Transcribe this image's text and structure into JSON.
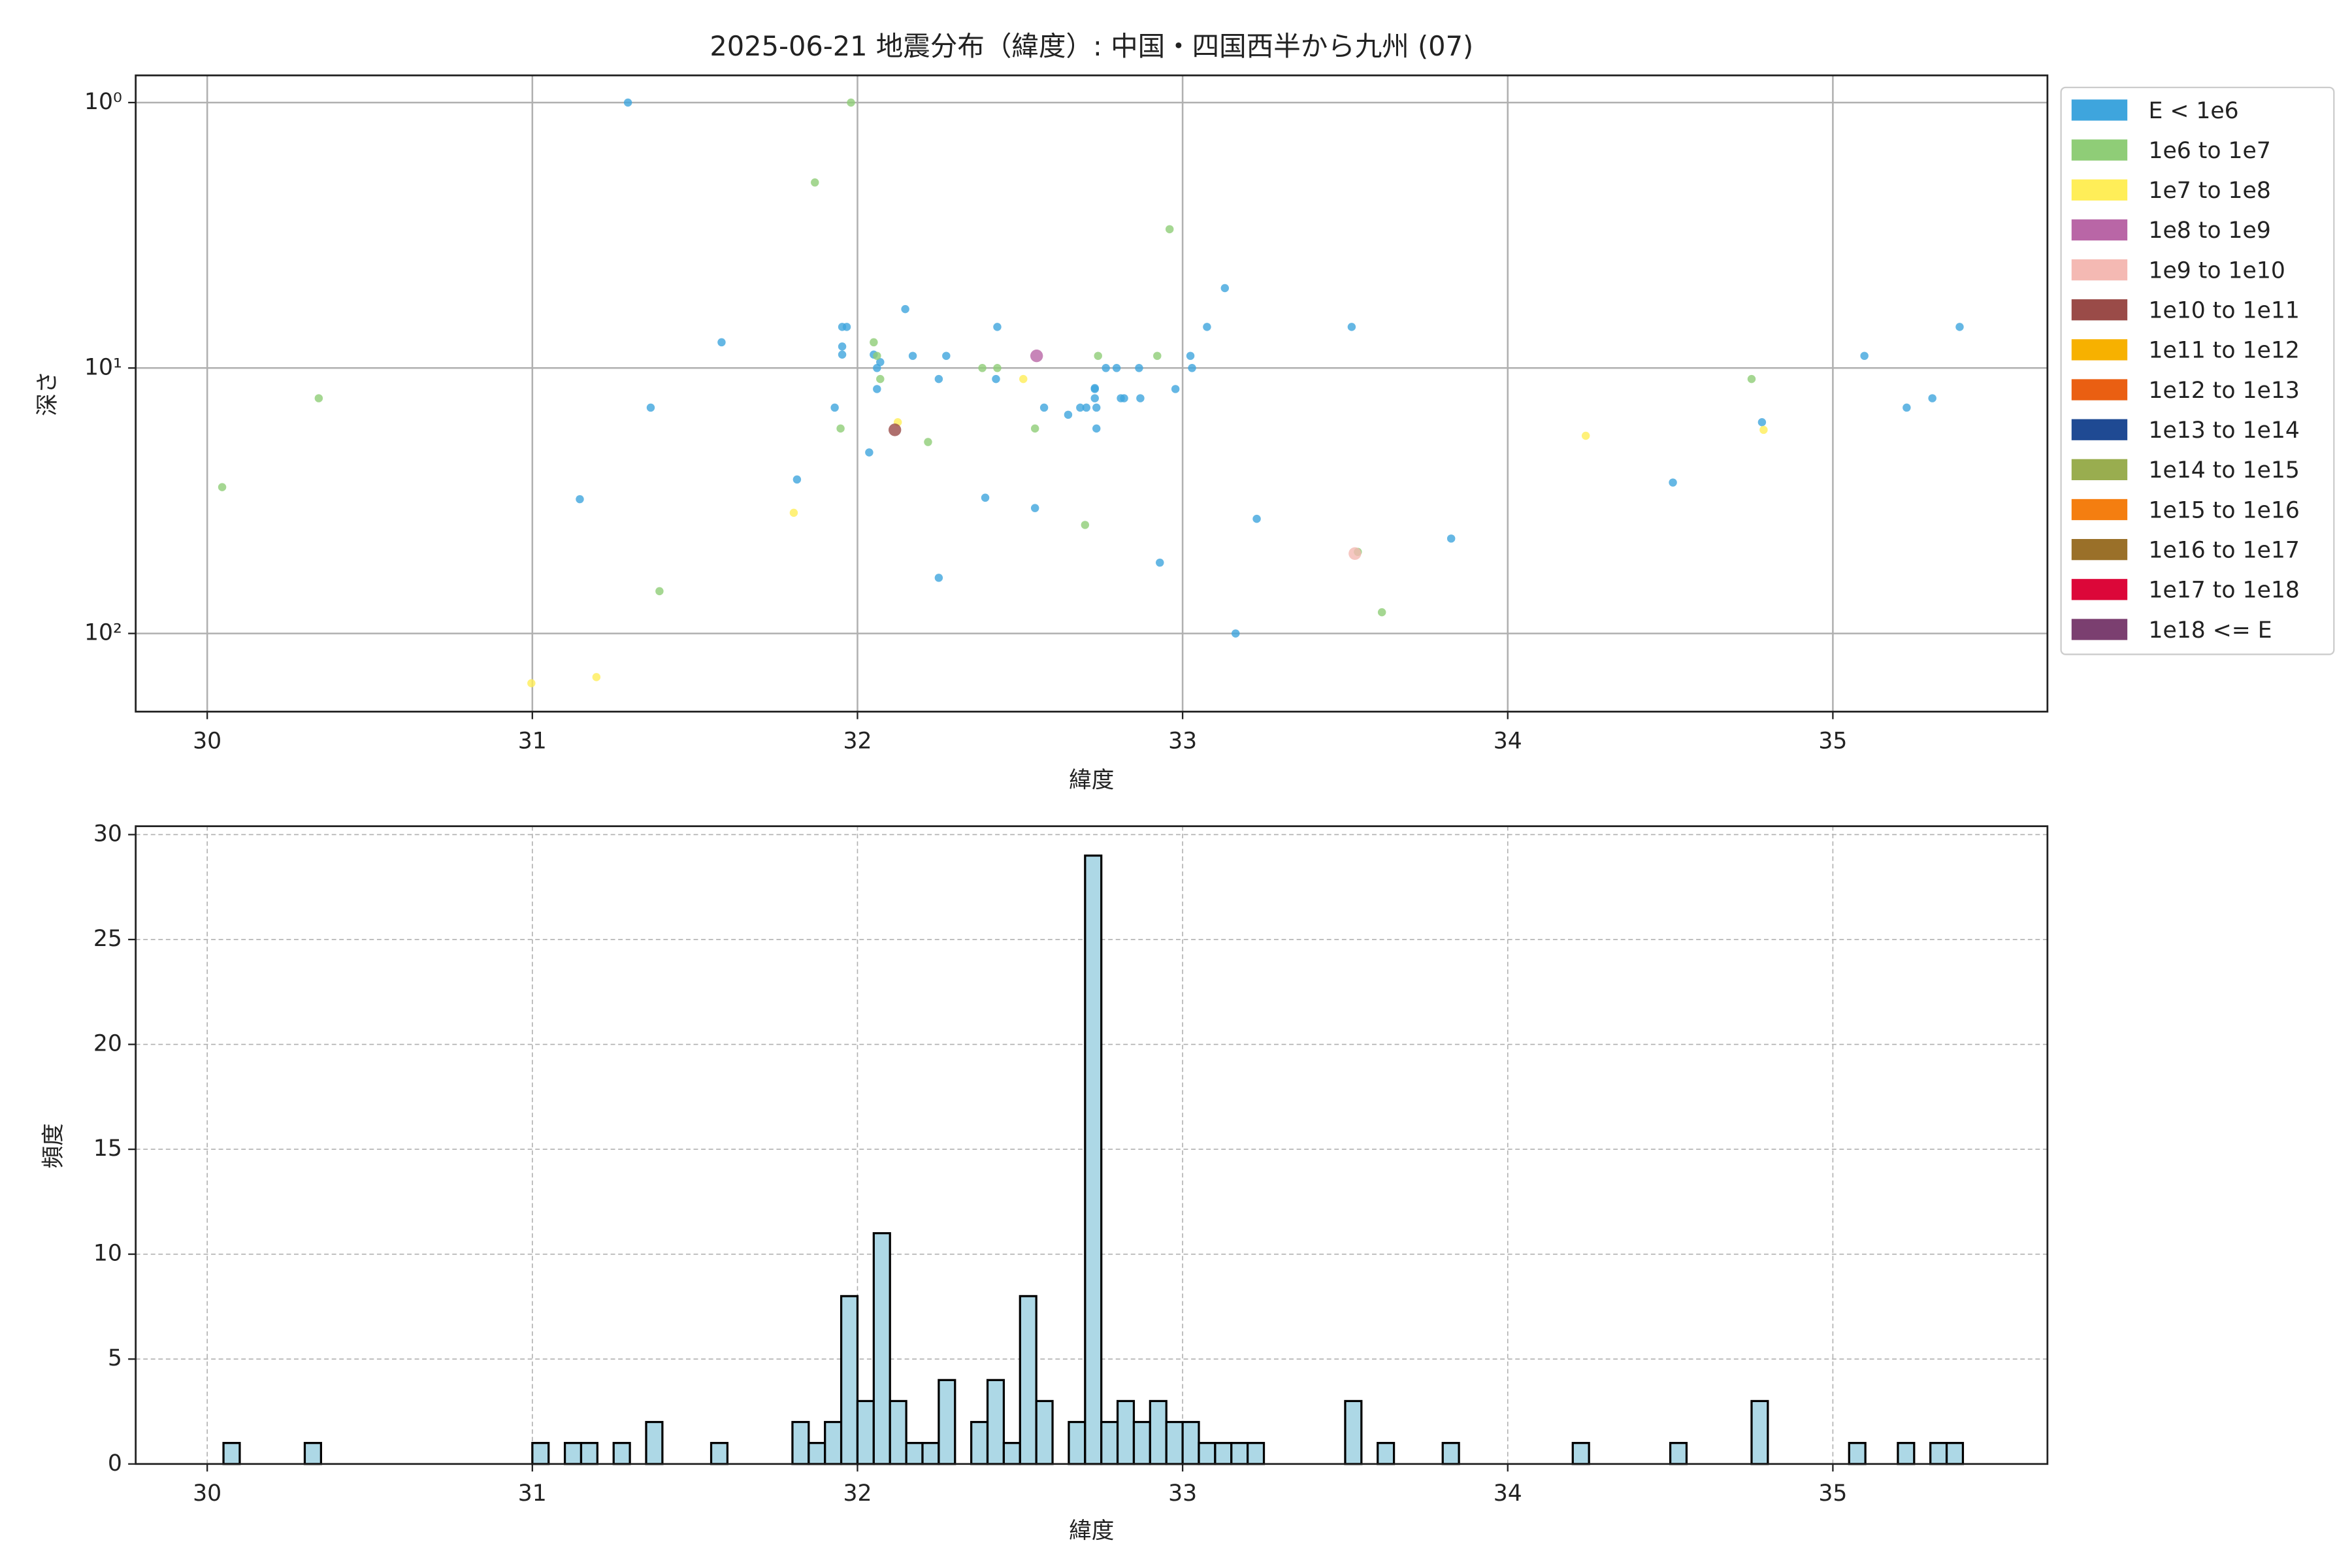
{
  "chart_data": [
    {
      "type": "scatter",
      "title": "2025-06-21 地震分布（緯度）: 中国・四国西半から九州 (07)",
      "xlabel": "緯度",
      "ylabel": "深さ",
      "xlim": [
        29.78,
        35.66
      ],
      "xticks": [
        30,
        31,
        32,
        33,
        34,
        35
      ],
      "ylim": [
        0.79,
        197
      ],
      "yscale": "log",
      "invert_y": true,
      "yticks": [
        {
          "value": 1,
          "label": "10⁰"
        },
        {
          "value": 10,
          "label": "10¹"
        },
        {
          "value": 100,
          "label": "10²"
        }
      ],
      "grid": true,
      "grid_style": "solid",
      "legend": "outside right",
      "series": [
        {
          "name": "E < 1e6",
          "color": "#3ea5dd",
          "x": [
            31.294,
            31.146,
            31.364,
            31.582,
            31.814,
            31.93,
            31.953,
            31.953,
            31.953,
            31.967,
            32.036,
            32.05,
            32.06,
            32.07,
            32.06,
            32.147,
            32.17,
            32.25,
            32.25,
            32.273,
            32.393,
            32.426,
            32.43,
            32.546,
            32.574,
            32.648,
            32.685,
            32.704,
            32.73,
            32.73,
            32.735,
            32.735,
            32.73,
            32.764,
            32.797,
            32.81,
            32.82,
            32.866,
            32.87,
            32.93,
            32.978,
            33.024,
            33.029,
            33.075,
            33.13,
            33.163,
            33.228,
            33.52,
            33.826,
            34.508,
            34.782,
            35.097,
            35.227,
            35.306,
            35.39
          ],
          "values": [
            1,
            31.2,
            14.1,
            8,
            26.3,
            14.1,
            7,
            8.3,
            8.9,
            7,
            20.8,
            8.9,
            10,
            9.5,
            12,
            6,
            9,
            61.7,
            11,
            9,
            30.8,
            11,
            7,
            33.7,
            14.1,
            15,
            14.1,
            14.1,
            12,
            13,
            14.1,
            16.9,
            11.9,
            10,
            10,
            13,
            13,
            10,
            13,
            54.1,
            12,
            9,
            10,
            7,
            5,
            100,
            37,
            7,
            43.9,
            27,
            16,
            9,
            14.1,
            13,
            7
          ]
        },
        {
          "name": "1e6 to 1e7",
          "color": "#8fcd77",
          "x": [
            30.046,
            30.343,
            31.391,
            31.869,
            31.98,
            31.948,
            32.05,
            32.06,
            32.07,
            32.217,
            32.384,
            32.43,
            32.546,
            32.7,
            32.74,
            32.922,
            32.96,
            33.539,
            33.613,
            34.75
          ],
          "values": [
            28.1,
            13,
            69.3,
            2,
            1,
            16.9,
            8,
            9,
            11,
            19,
            10,
            10,
            16.9,
            39,
            9,
            9,
            3,
            49.3,
            83.2,
            11
          ]
        },
        {
          "name": "1e7 to 1e8",
          "color": "#ffee58",
          "x": [
            30.997,
            31.197,
            31.804,
            32.124,
            32.51,
            34.24,
            34.787
          ],
          "values": [
            154,
            146,
            35.1,
            16,
            11,
            18,
            17.1
          ]
        },
        {
          "name": "1e8 to 1e9",
          "color": "#b966a6",
          "x": [
            32.551
          ],
          "values": [
            9
          ]
        },
        {
          "name": "1e9 to 1e10",
          "color": "#f4b9b3",
          "x": [
            33.53
          ],
          "values": [
            50
          ]
        },
        {
          "name": "1e10 to 1e11",
          "color": "#9a4b48",
          "x": [
            32.115
          ],
          "values": [
            17.1
          ]
        },
        {
          "name": "1e11 to 1e12",
          "color": "#f7b100",
          "x": [],
          "values": []
        },
        {
          "name": "1e12 to 1e13",
          "color": "#ea5f12",
          "x": [],
          "values": []
        },
        {
          "name": "1e13 to 1e14",
          "color": "#1f4a93",
          "x": [],
          "values": []
        },
        {
          "name": "1e14 to 1e15",
          "color": "#99ad4f",
          "x": [],
          "values": []
        },
        {
          "name": "1e15 to 1e16",
          "color": "#f47e10",
          "x": [],
          "values": []
        },
        {
          "name": "1e16 to 1e17",
          "color": "#9a7029",
          "x": [],
          "values": []
        },
        {
          "name": "1e17 to 1e18",
          "color": "#dc0739",
          "x": [],
          "values": []
        },
        {
          "name": "1e18 <= E",
          "color": "#7b3f70",
          "x": [],
          "values": []
        }
      ]
    },
    {
      "type": "histogram",
      "xlabel": "緯度",
      "ylabel": "頻度",
      "color": "#add8e6",
      "edgecolor": "#000000",
      "xlim": [
        29.78,
        35.66
      ],
      "xticks": [
        30,
        31,
        32,
        33,
        34,
        35
      ],
      "ylim": [
        0,
        30.4
      ],
      "yticks": [
        0,
        5,
        10,
        15,
        20,
        25,
        30
      ],
      "grid": true,
      "grid_style": "dashed",
      "bins": [
        30.05,
        30.1,
        30.15,
        30.2,
        30.25,
        30.3,
        30.35,
        30.4,
        30.45,
        30.5,
        30.55,
        30.6,
        30.65,
        30.7,
        30.75,
        30.8,
        30.85,
        30.9,
        30.95,
        31,
        31.05,
        31.1,
        31.15,
        31.2,
        31.25,
        31.3,
        31.35,
        31.4,
        31.45,
        31.5,
        31.55,
        31.6,
        31.65,
        31.7,
        31.75,
        31.8,
        31.85,
        31.9,
        31.95,
        32,
        32.05,
        32.1,
        32.15,
        32.2,
        32.25,
        32.3,
        32.35,
        32.4,
        32.45,
        32.5,
        32.55,
        32.6,
        32.65,
        32.7,
        32.75,
        32.8,
        32.85,
        32.9,
        32.95,
        33,
        33.05,
        33.1,
        33.15,
        33.2,
        33.25,
        33.3,
        33.35,
        33.4,
        33.45,
        33.5,
        33.55,
        33.6,
        33.65,
        33.7,
        33.75,
        33.8,
        33.85,
        33.9,
        33.95,
        34,
        34.05,
        34.1,
        34.15,
        34.2,
        34.25,
        34.3,
        34.35,
        34.4,
        34.45,
        34.5,
        34.55,
        34.6,
        34.65,
        34.7,
        34.75,
        34.8,
        34.85,
        34.9,
        34.95,
        35,
        35.05,
        35.1,
        35.15,
        35.2,
        35.25,
        35.3,
        35.35,
        35.4
      ],
      "values": [
        1,
        0,
        0,
        0,
        0,
        1,
        0,
        0,
        0,
        0,
        0,
        0,
        0,
        0,
        0,
        0,
        0,
        0,
        0,
        1,
        0,
        1,
        1,
        0,
        1,
        0,
        2,
        0,
        0,
        0,
        1,
        0,
        0,
        0,
        0,
        2,
        1,
        2,
        8,
        3,
        11,
        3,
        1,
        1,
        4,
        0,
        2,
        4,
        1,
        8,
        3,
        0,
        2,
        29,
        2,
        3,
        2,
        3,
        2,
        2,
        1,
        1,
        1,
        1,
        0,
        0,
        0,
        0,
        0,
        3,
        0,
        1,
        0,
        0,
        0,
        1,
        0,
        0,
        0,
        0,
        0,
        0,
        0,
        1,
        0,
        0,
        0,
        0,
        0,
        1,
        0,
        0,
        0,
        0,
        3,
        0,
        0,
        0,
        0,
        0,
        1,
        0,
        0,
        1,
        0,
        1,
        1
      ]
    }
  ]
}
